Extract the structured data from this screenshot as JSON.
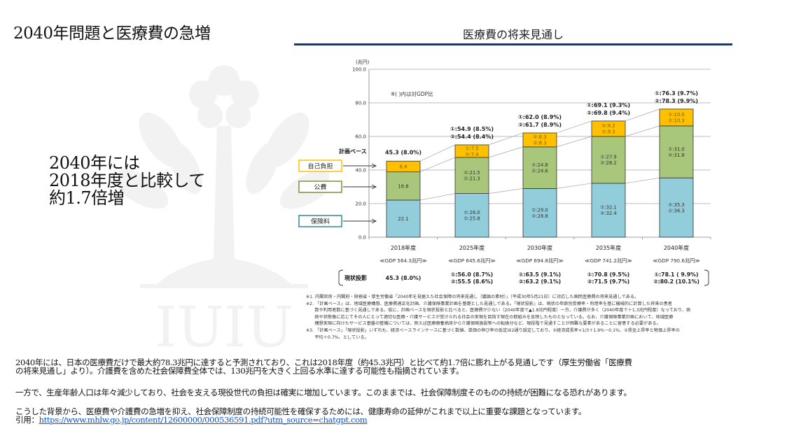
{
  "slide": {
    "title": "2040年問題と医療費の急増",
    "callout_lines": [
      "2040年には",
      "2018年度と比較して",
      "約1.7倍増"
    ],
    "watermark_text": "IUIU"
  },
  "chart_data": {
    "type": "bar",
    "stacked": true,
    "title": "医療費の将来見通し",
    "ylabel": "(兆円)",
    "ylim": [
      0,
      100
    ],
    "yticks": [
      "0.0",
      "20.0",
      "40.0",
      "60.0",
      "80.0",
      "100.0"
    ],
    "ytick_values": [
      0,
      20,
      40,
      60,
      80,
      100
    ],
    "grid": true,
    "note": "※(  )内は対GDP比",
    "plan_base_label": "計画ベース",
    "categories": [
      "2018年度",
      "2025年度",
      "2030年度",
      "2035年度",
      "2040年度"
    ],
    "gdp_labels": [
      "≪GDP 564.3兆円≫",
      "≪GDP 645.6兆円≫",
      "≪GDP 694.8兆円≫",
      "≪GDP 741.2兆円≫",
      "≪GDP 790.6兆円≫"
    ],
    "series": [
      {
        "name": "保険料",
        "color": "#92cddc",
        "legend_border": "#31859c",
        "values": [
          22.1,
          26.0,
          29.0,
          32.1,
          35.3
        ],
        "labels": [
          [
            "22.1"
          ],
          [
            "①:26.0",
            "②:25.8"
          ],
          [
            "①:29.0",
            "②:28.8"
          ],
          [
            "①:32.1",
            "②:32.4"
          ],
          [
            "①:35.3",
            "②:36.3"
          ]
        ]
      },
      {
        "name": "公費",
        "color": "#a9c77a",
        "legend_border": "#77933c",
        "values": [
          16.8,
          21.5,
          24.8,
          27.9,
          31.0
        ],
        "labels": [
          [
            "16.8"
          ],
          [
            "①:21.5",
            "②:21.3"
          ],
          [
            "①:24.8",
            "②:24.6"
          ],
          [
            "①:27.9",
            "②:28.2"
          ],
          [
            "①:31.0",
            "②:31.8"
          ]
        ]
      },
      {
        "name": "自己負担",
        "color": "#ffc000",
        "legend_border": "#ffc000",
        "values": [
          6.4,
          7.5,
          8.3,
          9.2,
          10.0
        ],
        "labels": [
          [
            "6.4"
          ],
          [
            "①:7.5",
            "②:7.4"
          ],
          [
            "①:8.3",
            "②:8.3"
          ],
          [
            "①:9.2",
            "②:9.3"
          ],
          [
            "①:10.0",
            "②:10.3"
          ]
        ]
      }
    ],
    "totals": [
      [
        "45.3 (8.0%)"
      ],
      [
        "①:54.9 (8.5%)",
        "②:54.4 (8.4%)"
      ],
      [
        "①:62.0 (8.9%)",
        "②:61.7 (8.9%)"
      ],
      [
        "①:69.1 (9.3%)",
        "②:69.8 (9.4%)"
      ],
      [
        "①:76.3 (9.7%)",
        "②:78.3 (9.9%)"
      ]
    ],
    "current_projection_label": "現状投影",
    "current_projection": [
      [
        "45.3 (8.0%)"
      ],
      [
        "①:56.0 (8.7%)",
        "②:55.5 (8.6%)"
      ],
      [
        "①:63.5 (9.1%)",
        "②:63.2 (9.1%)"
      ],
      [
        "①:70.8 (9.5%)",
        "②:71.5 (9.7%)"
      ],
      [
        "①:78.1 ( 9.9%)",
        "②:80.2 (10.1%)"
      ]
    ]
  },
  "footnotes": [
    "※1. 内閣官房・内閣府・財務省・厚生労働省「2040年を見据えた社会保障の将来見通し（議論の素材）」（平成30年5月21日）に対応した国民医療費の将来見通しである。",
    "※2. 「計画ベース」は、地域医療構想、医療費適正化計画、介護保険事業計画を基礎とした見通しである。「現状投影」は、現状の年齢別受療率・利用率を基に機械的に計算した将来の患者",
    "　　数や利用者数に基づく見通しである。仮に、計画ベースを現状投影と比べると、医療費が少ない（2040年度で▲1.8兆円程度）一方、介護費が多く（2040年度で＋1.3兆円程度）なっており、病",
    "　　病や状態像に応じてその人にとって適切な医療・介護サービスが受けられる社会の実現を目指す現在の取組みを反映したものとなっている。なお、介護保険事業計画において、地域医療",
    "　　構想実現に向けたサービス基盤の整備については、例えば医療療養病床から介護保険施設等への転換分など、現段階で見通すことが困難な要素があることに留意する必要がある。",
    "※3. 「計画ベース」「現状投影」いずれも、経済ベースラインケースに基づく数値。単価の伸び率の仮定は2通り設定しており、①経済成長率×1/3＋1.9%－0.1%、②賃金上昇率と物価上昇率の",
    "　　平均＋0.7%、としている。"
  ],
  "body": {
    "para1_line1": "2040年には、日本の医療費だけで最大約78.3兆円に達すると予測されており、これは2018年度（約45.3兆円）と比べて約1.7倍に膨れ上がる見通しです（厚生労働省「医療費",
    "para1_line2": "の将来見通し」より）。介護費を含めた社会保障費全体では、130兆円を大きく上回る水準に達する可能性も指摘されています。",
    "para2": "一方で、生産年齢人口は年々減少しており、社会を支える現役世代の負担は確実に増加しています。このままでは、社会保障制度そのものの持続が困難になる恐れがあります。",
    "para3": "こうした背景から、医療費や介護費の急増を抑え、社会保障制度の持続可能性を確保するためには、健康寿命の延伸がこれまで以上に重要な課題となっています。",
    "citation_prefix": "引用：",
    "citation_url": "https://www.mhlw.go.jp/content/12600000/000536591.pdf?utm_source=chatgpt.com"
  }
}
